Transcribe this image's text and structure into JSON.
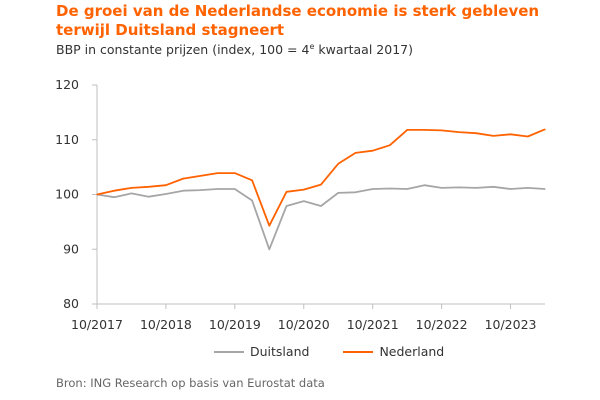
{
  "title": "De groei van de Nederlandse economie is sterk gebleven terwijl Duitsland stagneert",
  "subtitle": {
    "before": "BBP in constante prijzen (index, 100 = 4",
    "sup": "e",
    "after": " kwartaal 2017)"
  },
  "source": "Bron: ING Research op basis van Eurostat data",
  "colors": {
    "duitsland": "#A6A6A6",
    "nederland": "#FF6200",
    "axis": "#BFBFBF",
    "text": "#333333"
  },
  "chart_data": {
    "type": "line",
    "title": "De groei van de Nederlandse economie is sterk gebleven terwijl Duitsland stagneert",
    "ylabel": "BBP in constante prijzen (index, 100 = 4e kwartaal 2017)",
    "xlabel": "",
    "ylim": [
      80,
      120
    ],
    "yticks": [
      80,
      90,
      100,
      110,
      120
    ],
    "grid": false,
    "legend": "bottom",
    "x": [
      "2017Q4",
      "2018Q1",
      "2018Q2",
      "2018Q3",
      "2018Q4",
      "2019Q1",
      "2019Q2",
      "2019Q3",
      "2019Q4",
      "2020Q1",
      "2020Q2",
      "2020Q3",
      "2020Q4",
      "2021Q1",
      "2021Q2",
      "2021Q3",
      "2021Q4",
      "2022Q1",
      "2022Q2",
      "2022Q3",
      "2022Q4",
      "2023Q1",
      "2023Q2",
      "2023Q3",
      "2023Q4",
      "2024Q1",
      "2024Q2"
    ],
    "xtick_labels": [
      "10/2017",
      "10/2018",
      "10/2019",
      "10/2020",
      "10/2021",
      "10/2022",
      "10/2023"
    ],
    "xtick_index": [
      0,
      4,
      8,
      12,
      16,
      20,
      24
    ],
    "series": [
      {
        "name": "Duitsland",
        "values": [
          100,
          99.5,
          100.2,
          99.6,
          100.1,
          100.7,
          100.8,
          101.0,
          101.0,
          98.9,
          90.0,
          97.9,
          98.8,
          97.9,
          100.3,
          100.4,
          101.0,
          101.1,
          101.0,
          101.7,
          101.2,
          101.3,
          101.2,
          101.4,
          101.0,
          101.2,
          101.0
        ]
      },
      {
        "name": "Nederland",
        "values": [
          100,
          100.7,
          101.2,
          101.4,
          101.7,
          102.9,
          103.4,
          103.9,
          103.9,
          102.6,
          94.3,
          100.5,
          100.9,
          101.8,
          105.6,
          107.6,
          108.0,
          109.0,
          111.8,
          111.8,
          111.7,
          111.4,
          111.2,
          110.7,
          111.0,
          110.6,
          111.9
        ]
      }
    ]
  }
}
